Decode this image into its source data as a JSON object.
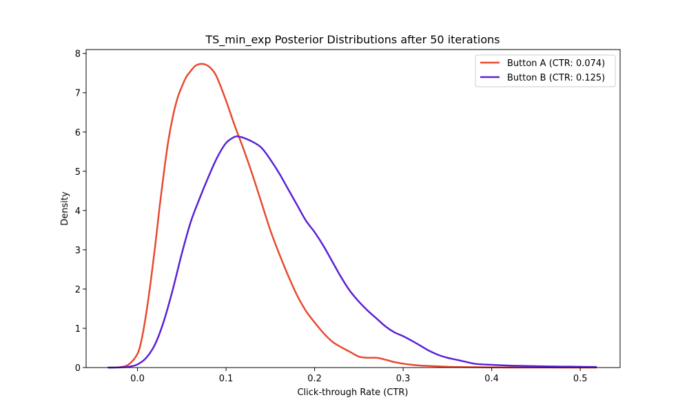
{
  "chart_data": {
    "type": "line",
    "title": "TS_min_exp Posterior Distributions after 50 iterations",
    "xlabel": "Click-through Rate (CTR)",
    "ylabel": "Density",
    "xlim": [
      -0.058,
      0.545
    ],
    "ylim": [
      0,
      8.1
    ],
    "xticks": [
      0.0,
      0.1,
      0.2,
      0.3,
      0.4,
      0.5
    ],
    "xtick_labels": [
      "0.0",
      "0.1",
      "0.2",
      "0.3",
      "0.4",
      "0.5"
    ],
    "yticks": [
      0,
      1,
      2,
      3,
      4,
      5,
      6,
      7,
      8
    ],
    "ytick_labels": [
      "0",
      "1",
      "2",
      "3",
      "4",
      "5",
      "6",
      "7",
      "8"
    ],
    "grid": false,
    "legend_position": "top-right",
    "series": [
      {
        "name": "Button A (CTR: 0.074)",
        "color": "#e8492e",
        "x": [
          -0.033,
          -0.02,
          -0.01,
          0.0,
          0.005,
          0.01,
          0.015,
          0.02,
          0.025,
          0.03,
          0.035,
          0.04,
          0.045,
          0.05,
          0.055,
          0.06,
          0.065,
          0.07,
          0.075,
          0.08,
          0.085,
          0.09,
          0.1,
          0.11,
          0.12,
          0.13,
          0.14,
          0.15,
          0.16,
          0.17,
          0.18,
          0.19,
          0.2,
          0.21,
          0.22,
          0.23,
          0.24,
          0.25,
          0.26,
          0.27,
          0.28,
          0.29,
          0.3,
          0.31,
          0.32,
          0.33,
          0.34,
          0.35,
          0.36,
          0.38,
          0.4,
          0.42,
          0.45,
          0.48,
          0.5,
          0.518
        ],
        "y": [
          0.0,
          0.01,
          0.08,
          0.35,
          0.75,
          1.4,
          2.2,
          3.1,
          4.1,
          5.0,
          5.8,
          6.4,
          6.85,
          7.15,
          7.4,
          7.55,
          7.68,
          7.73,
          7.73,
          7.68,
          7.57,
          7.38,
          6.8,
          6.15,
          5.55,
          4.9,
          4.2,
          3.5,
          2.9,
          2.35,
          1.85,
          1.45,
          1.15,
          0.88,
          0.66,
          0.52,
          0.4,
          0.28,
          0.25,
          0.25,
          0.2,
          0.14,
          0.1,
          0.07,
          0.05,
          0.04,
          0.03,
          0.02,
          0.015,
          0.01,
          0.005,
          0.003,
          0.002,
          0.001,
          0.0,
          0.0
        ]
      },
      {
        "name": "Button B (CTR: 0.125)",
        "color": "#5a20d8",
        "x": [
          -0.033,
          -0.02,
          -0.01,
          0.0,
          0.01,
          0.02,
          0.03,
          0.04,
          0.05,
          0.06,
          0.07,
          0.08,
          0.09,
          0.1,
          0.11,
          0.115,
          0.12,
          0.13,
          0.14,
          0.15,
          0.16,
          0.17,
          0.18,
          0.19,
          0.2,
          0.21,
          0.22,
          0.23,
          0.24,
          0.25,
          0.26,
          0.27,
          0.28,
          0.29,
          0.3,
          0.31,
          0.32,
          0.33,
          0.34,
          0.35,
          0.36,
          0.37,
          0.38,
          0.39,
          0.4,
          0.42,
          0.44,
          0.46,
          0.48,
          0.5,
          0.518
        ],
        "y": [
          0.0,
          0.005,
          0.02,
          0.08,
          0.25,
          0.6,
          1.2,
          2.0,
          2.9,
          3.7,
          4.3,
          4.85,
          5.35,
          5.72,
          5.88,
          5.88,
          5.85,
          5.75,
          5.6,
          5.3,
          4.95,
          4.55,
          4.15,
          3.75,
          3.45,
          3.1,
          2.7,
          2.3,
          1.95,
          1.68,
          1.45,
          1.25,
          1.05,
          0.9,
          0.8,
          0.68,
          0.55,
          0.42,
          0.32,
          0.25,
          0.2,
          0.15,
          0.1,
          0.08,
          0.07,
          0.05,
          0.04,
          0.03,
          0.025,
          0.02,
          0.015
        ]
      }
    ]
  }
}
